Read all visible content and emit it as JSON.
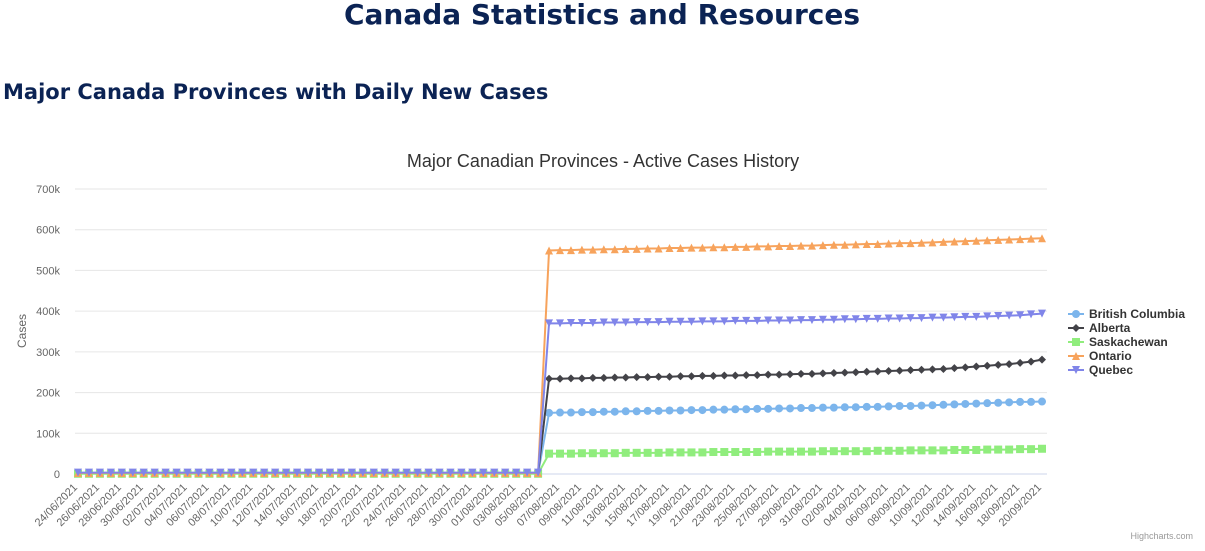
{
  "page": {
    "title": "Canada Statistics and Resources",
    "section_title": "Major Canada Provinces with Daily New Cases",
    "credits": "Highcharts.com"
  },
  "chart_data": {
    "type": "line",
    "title": "Major Canadian Provinces - Active Cases History",
    "y_label": "Cases",
    "categories": [
      "24/06/2021",
      null,
      "26/06/2021",
      null,
      "28/06/2021",
      null,
      "30/06/2021",
      null,
      "02/07/2021",
      null,
      "04/07/2021",
      null,
      "06/07/2021",
      null,
      "08/07/2021",
      null,
      "10/07/2021",
      null,
      "12/07/2021",
      null,
      "14/07/2021",
      null,
      "16/07/2021",
      null,
      "18/07/2021",
      null,
      "20/07/2021",
      null,
      "22/07/2021",
      null,
      "24/07/2021",
      null,
      "26/07/2021",
      null,
      "28/07/2021",
      null,
      "30/07/2021",
      null,
      "01/08/2021",
      null,
      "03/08/2021",
      null,
      "05/08/2021",
      null,
      "07/08/2021",
      null,
      "09/08/2021",
      null,
      "11/08/2021",
      null,
      "13/08/2021",
      null,
      "15/08/2021",
      null,
      "17/08/2021",
      null,
      "19/08/2021",
      null,
      "21/08/2021",
      null,
      "23/08/2021",
      null,
      "25/08/2021",
      null,
      "27/08/2021",
      null,
      "29/08/2021",
      null,
      "31/08/2021",
      null,
      "02/09/2021",
      null,
      "04/09/2021",
      null,
      "06/09/2021",
      null,
      "08/09/2021",
      null,
      "10/09/2021",
      null,
      "12/09/2021",
      null,
      "14/09/2021",
      null,
      "16/09/2021",
      null,
      "18/09/2021",
      null,
      "20/09/2021"
    ],
    "ylim": [
      0,
      700000
    ],
    "yticks": [
      0,
      {
        "value": 100000,
        "label": "100k"
      },
      {
        "value": 200000,
        "label": "200k"
      },
      {
        "value": 300000,
        "label": "300k"
      },
      {
        "value": 400000,
        "label": "400k"
      },
      {
        "value": 500000,
        "label": "500k"
      },
      {
        "value": 600000,
        "label": "600k"
      },
      {
        "value": 700000,
        "label": "700k"
      }
    ],
    "grid": true,
    "legend": "right",
    "series": [
      {
        "name": "British Columbia",
        "color": "#7cb5ec",
        "marker": "circle",
        "values": [
          1500,
          1500,
          1500,
          1500,
          1500,
          1500,
          1500,
          1500,
          1500,
          1500,
          1500,
          1500,
          1500,
          1500,
          1500,
          1500,
          1500,
          1500,
          1500,
          1500,
          1500,
          1500,
          1500,
          1500,
          1500,
          1500,
          1500,
          1500,
          1500,
          1500,
          1500,
          1500,
          1500,
          1500,
          1500,
          1500,
          1500,
          1500,
          1500,
          1500,
          1500,
          1500,
          1500,
          150000,
          151000,
          151000,
          152000,
          152000,
          153000,
          153000,
          154000,
          154000,
          155000,
          155000,
          156000,
          156000,
          157000,
          157000,
          158000,
          158000,
          159000,
          159000,
          160000,
          160000,
          161000,
          161000,
          162000,
          162000,
          163000,
          163000,
          164000,
          164000,
          165000,
          165000,
          166000,
          167000,
          167000,
          168000,
          169000,
          170000,
          171000,
          172000,
          173000,
          174000,
          175000,
          176000,
          177000,
          177000,
          178000
        ]
      },
      {
        "name": "Alberta",
        "color": "#434348",
        "marker": "diamond",
        "values": [
          2000,
          2000,
          2000,
          2000,
          2000,
          2000,
          2000,
          2000,
          2000,
          2000,
          2000,
          2000,
          2000,
          2000,
          2000,
          2000,
          2000,
          2000,
          2000,
          2000,
          2000,
          2000,
          2000,
          2000,
          2000,
          2000,
          2000,
          2000,
          2000,
          2000,
          2000,
          2000,
          2000,
          2000,
          2000,
          2000,
          2000,
          2000,
          2000,
          2000,
          2000,
          2000,
          2000,
          234000,
          234000,
          235000,
          235000,
          236000,
          236000,
          237000,
          237000,
          238000,
          238000,
          239000,
          239000,
          240000,
          240000,
          241000,
          241000,
          242000,
          242000,
          243000,
          243000,
          244000,
          244000,
          245000,
          246000,
          246000,
          247000,
          248000,
          249000,
          250000,
          251000,
          252000,
          253000,
          254000,
          255000,
          256000,
          257000,
          258000,
          260000,
          262000,
          264000,
          266000,
          268000,
          270000,
          273000,
          276000,
          281000
        ]
      },
      {
        "name": "Saskachewan",
        "color": "#90ed7d",
        "marker": "square",
        "values": [
          500,
          500,
          500,
          500,
          500,
          500,
          500,
          500,
          500,
          500,
          500,
          500,
          500,
          500,
          500,
          500,
          500,
          500,
          500,
          500,
          500,
          500,
          500,
          500,
          500,
          500,
          500,
          500,
          500,
          500,
          500,
          500,
          500,
          500,
          500,
          500,
          500,
          500,
          500,
          500,
          500,
          500,
          500,
          50000,
          50000,
          50000,
          51000,
          51000,
          51000,
          51000,
          52000,
          52000,
          52000,
          52000,
          53000,
          53000,
          53000,
          53000,
          54000,
          54000,
          54000,
          54000,
          54000,
          55000,
          55000,
          55000,
          55000,
          55000,
          56000,
          56000,
          56000,
          56000,
          56000,
          57000,
          57000,
          57000,
          58000,
          58000,
          58000,
          58000,
          59000,
          59000,
          59000,
          60000,
          60000,
          60000,
          61000,
          61000,
          62000
        ]
      },
      {
        "name": "Ontario",
        "color": "#f7a35c",
        "marker": "triangle",
        "values": [
          2500,
          2500,
          2500,
          2500,
          2500,
          2500,
          2500,
          2500,
          2500,
          2500,
          2500,
          2500,
          2500,
          2500,
          2500,
          2500,
          2500,
          2500,
          2500,
          2500,
          2500,
          2500,
          2500,
          2500,
          2500,
          2500,
          2500,
          2500,
          2500,
          2500,
          2500,
          2500,
          2500,
          2500,
          2500,
          2500,
          2500,
          2500,
          2500,
          2500,
          2500,
          2500,
          2500,
          549000,
          550000,
          550000,
          551000,
          551000,
          552000,
          552000,
          553000,
          553000,
          554000,
          554000,
          555000,
          555000,
          556000,
          556000,
          557000,
          557000,
          558000,
          558000,
          559000,
          559000,
          560000,
          560000,
          561000,
          561000,
          562000,
          563000,
          563000,
          564000,
          565000,
          565000,
          566000,
          567000,
          567000,
          568000,
          569000,
          570000,
          571000,
          572000,
          573000,
          574000,
          575000,
          576000,
          577000,
          578000,
          579000
        ]
      },
      {
        "name": "Quebec",
        "color": "#8085e9",
        "marker": "triangle-down",
        "values": [
          3500,
          3500,
          3500,
          3500,
          3500,
          3500,
          3500,
          3500,
          3500,
          3500,
          3500,
          3500,
          3500,
          3500,
          3500,
          3500,
          3500,
          3500,
          3500,
          3500,
          3500,
          3500,
          3500,
          3500,
          3500,
          3500,
          3500,
          3500,
          3500,
          3500,
          3500,
          3500,
          3500,
          3500,
          3500,
          3500,
          3500,
          3500,
          3500,
          3500,
          3500,
          3500,
          3500,
          370000,
          370000,
          371000,
          371000,
          371000,
          372000,
          372000,
          372000,
          373000,
          373000,
          373000,
          374000,
          374000,
          374000,
          375000,
          375000,
          375000,
          376000,
          376000,
          376000,
          377000,
          377000,
          377000,
          378000,
          378000,
          379000,
          379000,
          380000,
          380000,
          381000,
          381000,
          382000,
          382000,
          383000,
          383000,
          384000,
          384000,
          385000,
          386000,
          386000,
          387000,
          388000,
          389000,
          390000,
          392000,
          394000
        ]
      }
    ]
  }
}
